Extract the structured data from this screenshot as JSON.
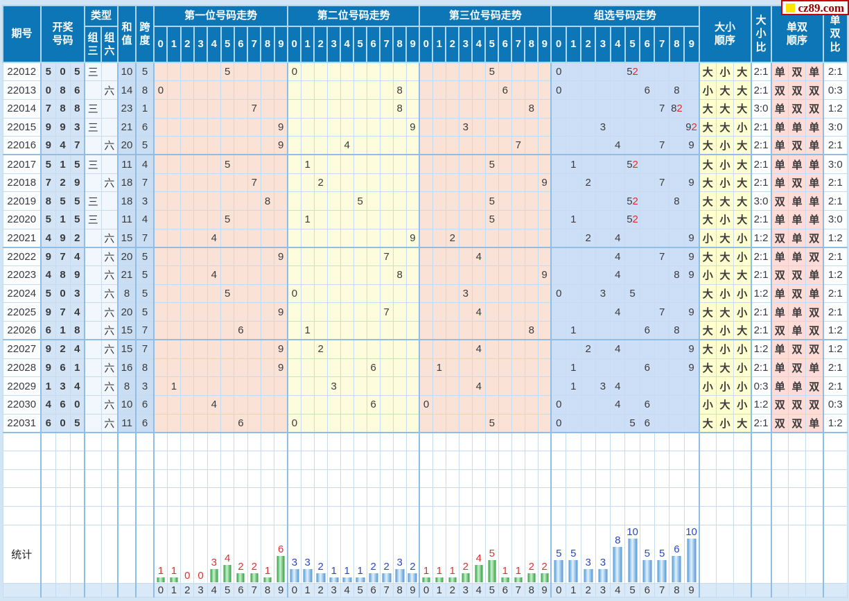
{
  "site": {
    "logo_text": "cz89.com"
  },
  "header": {
    "period": [
      "期号"
    ],
    "draw_numbers": [
      "开奖",
      "号码"
    ],
    "type": "类型",
    "type_group3": [
      "组",
      "三"
    ],
    "type_group6": [
      "组",
      "六"
    ],
    "sum": [
      "和",
      "值"
    ],
    "span": [
      "跨",
      "度"
    ],
    "sections": [
      {
        "title": "第一位号码走势"
      },
      {
        "title": "第二位号码走势"
      },
      {
        "title": "第三位号码走势"
      },
      {
        "title": "组选号码走势"
      }
    ],
    "digit_labels": [
      "0",
      "1",
      "2",
      "3",
      "4",
      "5",
      "6",
      "7",
      "8",
      "9"
    ],
    "size_order": [
      "大小",
      "顺序"
    ],
    "size_ratio": [
      "大",
      "小",
      "比"
    ],
    "parity_order": [
      "单双",
      "顺序"
    ],
    "parity_ratio": [
      "单",
      "双",
      "比"
    ]
  },
  "rows": [
    {
      "period": "22012",
      "nums": [
        [
          "5",
          "r"
        ],
        [
          "0",
          "b"
        ],
        [
          "5",
          "r"
        ]
      ],
      "type": "三",
      "sum": "10",
      "span": "5",
      "pos": [
        5,
        0,
        5
      ],
      "group": [
        [
          0,
          1
        ],
        [
          5,
          2
        ]
      ],
      "size": "大小大",
      "size_ratio": "2:1",
      "parity": "单双单",
      "parity_ratio": "2:1"
    },
    {
      "period": "22013",
      "nums": [
        [
          "0",
          "b"
        ],
        [
          "8",
          "b"
        ],
        [
          "6",
          "b"
        ]
      ],
      "type": "六",
      "sum": "14",
      "span": "8",
      "pos": [
        0,
        8,
        6
      ],
      "group": [
        [
          0,
          1
        ],
        [
          6,
          1
        ],
        [
          8,
          1
        ]
      ],
      "size": "小大大",
      "size_ratio": "2:1",
      "parity": "双双双",
      "parity_ratio": "0:3"
    },
    {
      "period": "22014",
      "nums": [
        [
          "7",
          "b"
        ],
        [
          "8",
          "r"
        ],
        [
          "8",
          "r"
        ]
      ],
      "type": "三",
      "sum": "23",
      "span": "1",
      "pos": [
        7,
        8,
        8
      ],
      "group": [
        [
          7,
          1
        ],
        [
          8,
          2
        ]
      ],
      "size": "大大大",
      "size_ratio": "3:0",
      "parity": "单双双",
      "parity_ratio": "1:2"
    },
    {
      "period": "22015",
      "nums": [
        [
          "9",
          "r"
        ],
        [
          "9",
          "r"
        ],
        [
          "3",
          "b"
        ]
      ],
      "type": "三",
      "sum": "21",
      "span": "6",
      "pos": [
        9,
        9,
        3
      ],
      "group": [
        [
          3,
          1
        ],
        [
          9,
          2
        ]
      ],
      "size": "大大小",
      "size_ratio": "2:1",
      "parity": "单单单",
      "parity_ratio": "3:0"
    },
    {
      "period": "22016",
      "nums": [
        [
          "9",
          "b"
        ],
        [
          "4",
          "b"
        ],
        [
          "7",
          "b"
        ]
      ],
      "type": "六",
      "sum": "20",
      "span": "5",
      "pos": [
        9,
        4,
        7
      ],
      "group": [
        [
          4,
          1
        ],
        [
          7,
          1
        ],
        [
          9,
          1
        ]
      ],
      "size": "大小大",
      "size_ratio": "2:1",
      "parity": "单双单",
      "parity_ratio": "2:1"
    },
    {
      "period": "22017",
      "nums": [
        [
          "5",
          "r"
        ],
        [
          "1",
          "b"
        ],
        [
          "5",
          "r"
        ]
      ],
      "type": "三",
      "sum": "11",
      "span": "4",
      "pos": [
        5,
        1,
        5
      ],
      "group": [
        [
          1,
          1
        ],
        [
          5,
          2
        ]
      ],
      "size": "大小大",
      "size_ratio": "2:1",
      "parity": "单单单",
      "parity_ratio": "3:0"
    },
    {
      "period": "22018",
      "nums": [
        [
          "7",
          "b"
        ],
        [
          "2",
          "b"
        ],
        [
          "9",
          "b"
        ]
      ],
      "type": "六",
      "sum": "18",
      "span": "7",
      "pos": [
        7,
        2,
        9
      ],
      "group": [
        [
          2,
          1
        ],
        [
          7,
          1
        ],
        [
          9,
          1
        ]
      ],
      "size": "大小大",
      "size_ratio": "2:1",
      "parity": "单双单",
      "parity_ratio": "2:1"
    },
    {
      "period": "22019",
      "nums": [
        [
          "8",
          "b"
        ],
        [
          "5",
          "r"
        ],
        [
          "5",
          "r"
        ]
      ],
      "type": "三",
      "sum": "18",
      "span": "3",
      "pos": [
        8,
        5,
        5
      ],
      "group": [
        [
          5,
          2
        ],
        [
          8,
          1
        ]
      ],
      "size": "大大大",
      "size_ratio": "3:0",
      "parity": "双单单",
      "parity_ratio": "2:1"
    },
    {
      "period": "22020",
      "nums": [
        [
          "5",
          "r"
        ],
        [
          "1",
          "b"
        ],
        [
          "5",
          "r"
        ]
      ],
      "type": "三",
      "sum": "11",
      "span": "4",
      "pos": [
        5,
        1,
        5
      ],
      "group": [
        [
          1,
          1
        ],
        [
          5,
          2
        ]
      ],
      "size": "大小大",
      "size_ratio": "2:1",
      "parity": "单单单",
      "parity_ratio": "3:0"
    },
    {
      "period": "22021",
      "nums": [
        [
          "4",
          "b"
        ],
        [
          "9",
          "b"
        ],
        [
          "2",
          "b"
        ]
      ],
      "type": "六",
      "sum": "15",
      "span": "7",
      "pos": [
        4,
        9,
        2
      ],
      "group": [
        [
          2,
          1
        ],
        [
          4,
          1
        ],
        [
          9,
          1
        ]
      ],
      "size": "小大小",
      "size_ratio": "1:2",
      "parity": "双单双",
      "parity_ratio": "1:2"
    },
    {
      "period": "22022",
      "nums": [
        [
          "9",
          "b"
        ],
        [
          "7",
          "b"
        ],
        [
          "4",
          "b"
        ]
      ],
      "type": "六",
      "sum": "20",
      "span": "5",
      "pos": [
        9,
        7,
        4
      ],
      "group": [
        [
          4,
          1
        ],
        [
          7,
          1
        ],
        [
          9,
          1
        ]
      ],
      "size": "大大小",
      "size_ratio": "2:1",
      "parity": "单单双",
      "parity_ratio": "2:1"
    },
    {
      "period": "22023",
      "nums": [
        [
          "4",
          "b"
        ],
        [
          "8",
          "b"
        ],
        [
          "9",
          "b"
        ]
      ],
      "type": "六",
      "sum": "21",
      "span": "5",
      "pos": [
        4,
        8,
        9
      ],
      "group": [
        [
          4,
          1
        ],
        [
          8,
          1
        ],
        [
          9,
          1
        ]
      ],
      "size": "小大大",
      "size_ratio": "2:1",
      "parity": "双双单",
      "parity_ratio": "1:2"
    },
    {
      "period": "22024",
      "nums": [
        [
          "5",
          "b"
        ],
        [
          "0",
          "b"
        ],
        [
          "3",
          "b"
        ]
      ],
      "type": "六",
      "sum": "8",
      "span": "5",
      "pos": [
        5,
        0,
        3
      ],
      "group": [
        [
          0,
          1
        ],
        [
          3,
          1
        ],
        [
          5,
          1
        ]
      ],
      "size": "大小小",
      "size_ratio": "1:2",
      "parity": "单双单",
      "parity_ratio": "2:1"
    },
    {
      "period": "22025",
      "nums": [
        [
          "9",
          "b"
        ],
        [
          "7",
          "b"
        ],
        [
          "4",
          "b"
        ]
      ],
      "type": "六",
      "sum": "20",
      "span": "5",
      "pos": [
        9,
        7,
        4
      ],
      "group": [
        [
          4,
          1
        ],
        [
          7,
          1
        ],
        [
          9,
          1
        ]
      ],
      "size": "大大小",
      "size_ratio": "2:1",
      "parity": "单单双",
      "parity_ratio": "2:1"
    },
    {
      "period": "22026",
      "nums": [
        [
          "6",
          "b"
        ],
        [
          "1",
          "b"
        ],
        [
          "8",
          "b"
        ]
      ],
      "type": "六",
      "sum": "15",
      "span": "7",
      "pos": [
        6,
        1,
        8
      ],
      "group": [
        [
          1,
          1
        ],
        [
          6,
          1
        ],
        [
          8,
          1
        ]
      ],
      "size": "大小大",
      "size_ratio": "2:1",
      "parity": "双单双",
      "parity_ratio": "1:2"
    },
    {
      "period": "22027",
      "nums": [
        [
          "9",
          "b"
        ],
        [
          "2",
          "b"
        ],
        [
          "4",
          "b"
        ]
      ],
      "type": "六",
      "sum": "15",
      "span": "7",
      "pos": [
        9,
        2,
        4
      ],
      "group": [
        [
          2,
          1
        ],
        [
          4,
          1
        ],
        [
          9,
          1
        ]
      ],
      "size": "大小小",
      "size_ratio": "1:2",
      "parity": "单双双",
      "parity_ratio": "1:2"
    },
    {
      "period": "22028",
      "nums": [
        [
          "9",
          "b"
        ],
        [
          "6",
          "b"
        ],
        [
          "1",
          "b"
        ]
      ],
      "type": "六",
      "sum": "16",
      "span": "8",
      "pos": [
        9,
        6,
        1
      ],
      "group": [
        [
          1,
          1
        ],
        [
          6,
          1
        ],
        [
          9,
          1
        ]
      ],
      "size": "大大小",
      "size_ratio": "2:1",
      "parity": "单双单",
      "parity_ratio": "2:1"
    },
    {
      "period": "22029",
      "nums": [
        [
          "1",
          "b"
        ],
        [
          "3",
          "b"
        ],
        [
          "4",
          "b"
        ]
      ],
      "type": "六",
      "sum": "8",
      "span": "3",
      "pos": [
        1,
        3,
        4
      ],
      "group": [
        [
          1,
          1
        ],
        [
          3,
          1
        ],
        [
          4,
          1
        ]
      ],
      "size": "小小小",
      "size_ratio": "0:3",
      "parity": "单单双",
      "parity_ratio": "2:1"
    },
    {
      "period": "22030",
      "nums": [
        [
          "4",
          "b"
        ],
        [
          "6",
          "b"
        ],
        [
          "0",
          "b"
        ]
      ],
      "type": "六",
      "sum": "10",
      "span": "6",
      "pos": [
        4,
        6,
        0
      ],
      "group": [
        [
          0,
          1
        ],
        [
          4,
          1
        ],
        [
          6,
          1
        ]
      ],
      "size": "小大小",
      "size_ratio": "1:2",
      "parity": "双双双",
      "parity_ratio": "0:3"
    },
    {
      "period": "22031",
      "nums": [
        [
          "6",
          "b"
        ],
        [
          "0",
          "b"
        ],
        [
          "5",
          "b"
        ]
      ],
      "type": "六",
      "sum": "11",
      "span": "6",
      "pos": [
        6,
        0,
        5
      ],
      "group": [
        [
          0,
          1
        ],
        [
          5,
          1
        ],
        [
          6,
          1
        ]
      ],
      "size": "大小大",
      "size_ratio": "2:1",
      "parity": "双双单",
      "parity_ratio": "1:2"
    }
  ],
  "empty_rows": 5,
  "stats_label": "统计",
  "chart_data": [
    {
      "type": "bar",
      "title": "第一位号码走势 统计",
      "categories": [
        "0",
        "1",
        "2",
        "3",
        "4",
        "5",
        "6",
        "7",
        "8",
        "9"
      ],
      "values": [
        1,
        1,
        0,
        0,
        3,
        4,
        2,
        2,
        1,
        6
      ],
      "ylim": [
        0,
        10
      ],
      "bar_style": "green",
      "label_color": "#e03030",
      "footer_color": "red"
    },
    {
      "type": "bar",
      "title": "第二位号码走势 统计",
      "categories": [
        "0",
        "1",
        "2",
        "3",
        "4",
        "5",
        "6",
        "7",
        "8",
        "9"
      ],
      "values": [
        3,
        3,
        2,
        1,
        1,
        1,
        2,
        2,
        3,
        2
      ],
      "ylim": [
        0,
        10
      ],
      "bar_style": "blue",
      "label_color": "#2a46c8",
      "footer_color": "blue"
    },
    {
      "type": "bar",
      "title": "第三位号码走势 统计",
      "categories": [
        "0",
        "1",
        "2",
        "3",
        "4",
        "5",
        "6",
        "7",
        "8",
        "9"
      ],
      "values": [
        1,
        1,
        1,
        2,
        4,
        5,
        1,
        1,
        2,
        2
      ],
      "ylim": [
        0,
        10
      ],
      "bar_style": "green",
      "label_color": "#e03030",
      "footer_color": "red"
    },
    {
      "type": "bar",
      "title": "组选号码走势 统计",
      "categories": [
        "0",
        "1",
        "2",
        "3",
        "4",
        "5",
        "6",
        "7",
        "8",
        "9"
      ],
      "values": [
        5,
        5,
        3,
        3,
        8,
        10,
        5,
        5,
        6,
        10
      ],
      "ylim": [
        0,
        10
      ],
      "bar_style": "blue",
      "label_color": "#2a46c8",
      "footer_color": "blue"
    }
  ],
  "colors": {
    "header_bg": "#0d76b6",
    "num_red": "#d02a2a",
    "num_blue": "#1f1f9e",
    "big_odd_red": "#e23b20",
    "small_even_blue": "#3030c2",
    "section1_bg": "#fbe2d6",
    "section2_bg": "#fdfddd",
    "section3_bg": "#fbe2d6",
    "section4_bg": "#cddff7",
    "logo_text_red": "#9a0000",
    "logo_square_yellow": "#ffe400"
  }
}
